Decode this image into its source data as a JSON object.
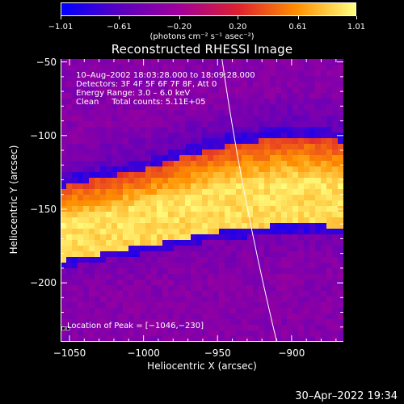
{
  "title": "Reconstructed RHESSI Image",
  "colorbar": {
    "ticks": [
      "−1.01",
      "−0.61",
      "−0.20",
      "0.20",
      "0.61",
      "1.01"
    ],
    "tick_values": [
      -1.01,
      -0.61,
      -0.2,
      0.2,
      0.61,
      1.01
    ],
    "units": "(photons cm⁻² s⁻¹ asec⁻²)",
    "colors": [
      "#0000ff",
      "#5a00c0",
      "#a0009a",
      "#dd2030",
      "#ff9000",
      "#ffff80"
    ]
  },
  "info": {
    "line1": "10–Aug–2002 18:03:28.000 to 18:09:28.000",
    "line2": "Detectors: 3F 4F 5F 6F 7F 8F, Att 0",
    "line3": "Energy Range: 3.0 – 6.0 keV",
    "line4": "Clean     Total counts: 5.11E+05",
    "peak": "Location of Peak = [−1046,−230]"
  },
  "timestamp": "30–Apr–2022 19:34",
  "xlabel": "Heliocentric X (arcsec)",
  "ylabel": "Heliocentric Y (arcsec)",
  "xticks": [
    "−1050",
    "−1000",
    "−950",
    "−900"
  ],
  "yticks": [
    "−50",
    "−100",
    "−150",
    "−200"
  ],
  "chart_data": {
    "type": "heatmap",
    "title": "Reconstructed RHESSI Image",
    "xlabel": "Heliocentric X (arcsec)",
    "ylabel": "Heliocentric Y (arcsec)",
    "xlim": [
      -1056,
      -865
    ],
    "ylim": [
      -240,
      -48
    ],
    "xticks": [
      -1050,
      -1000,
      -950,
      -900
    ],
    "yticks": [
      -50,
      -100,
      -150,
      -200
    ],
    "colorbar_range": [
      -1.01,
      1.01
    ],
    "peak": [
      -1046,
      -230
    ],
    "limb_line": true,
    "bright_arc": {
      "inner_edge_y_at_x": [
        [
          -1056,
          -185
        ],
        [
          -1000,
          -175
        ],
        [
          -950,
          -165
        ],
        [
          -900,
          -160
        ],
        [
          -865,
          -162
        ]
      ],
      "outer_edge_y_at_x": [
        [
          -1056,
          -135
        ],
        [
          -1000,
          -123
        ],
        [
          -950,
          -108
        ],
        [
          -900,
          -100
        ],
        [
          -865,
          -104
        ]
      ]
    }
  }
}
